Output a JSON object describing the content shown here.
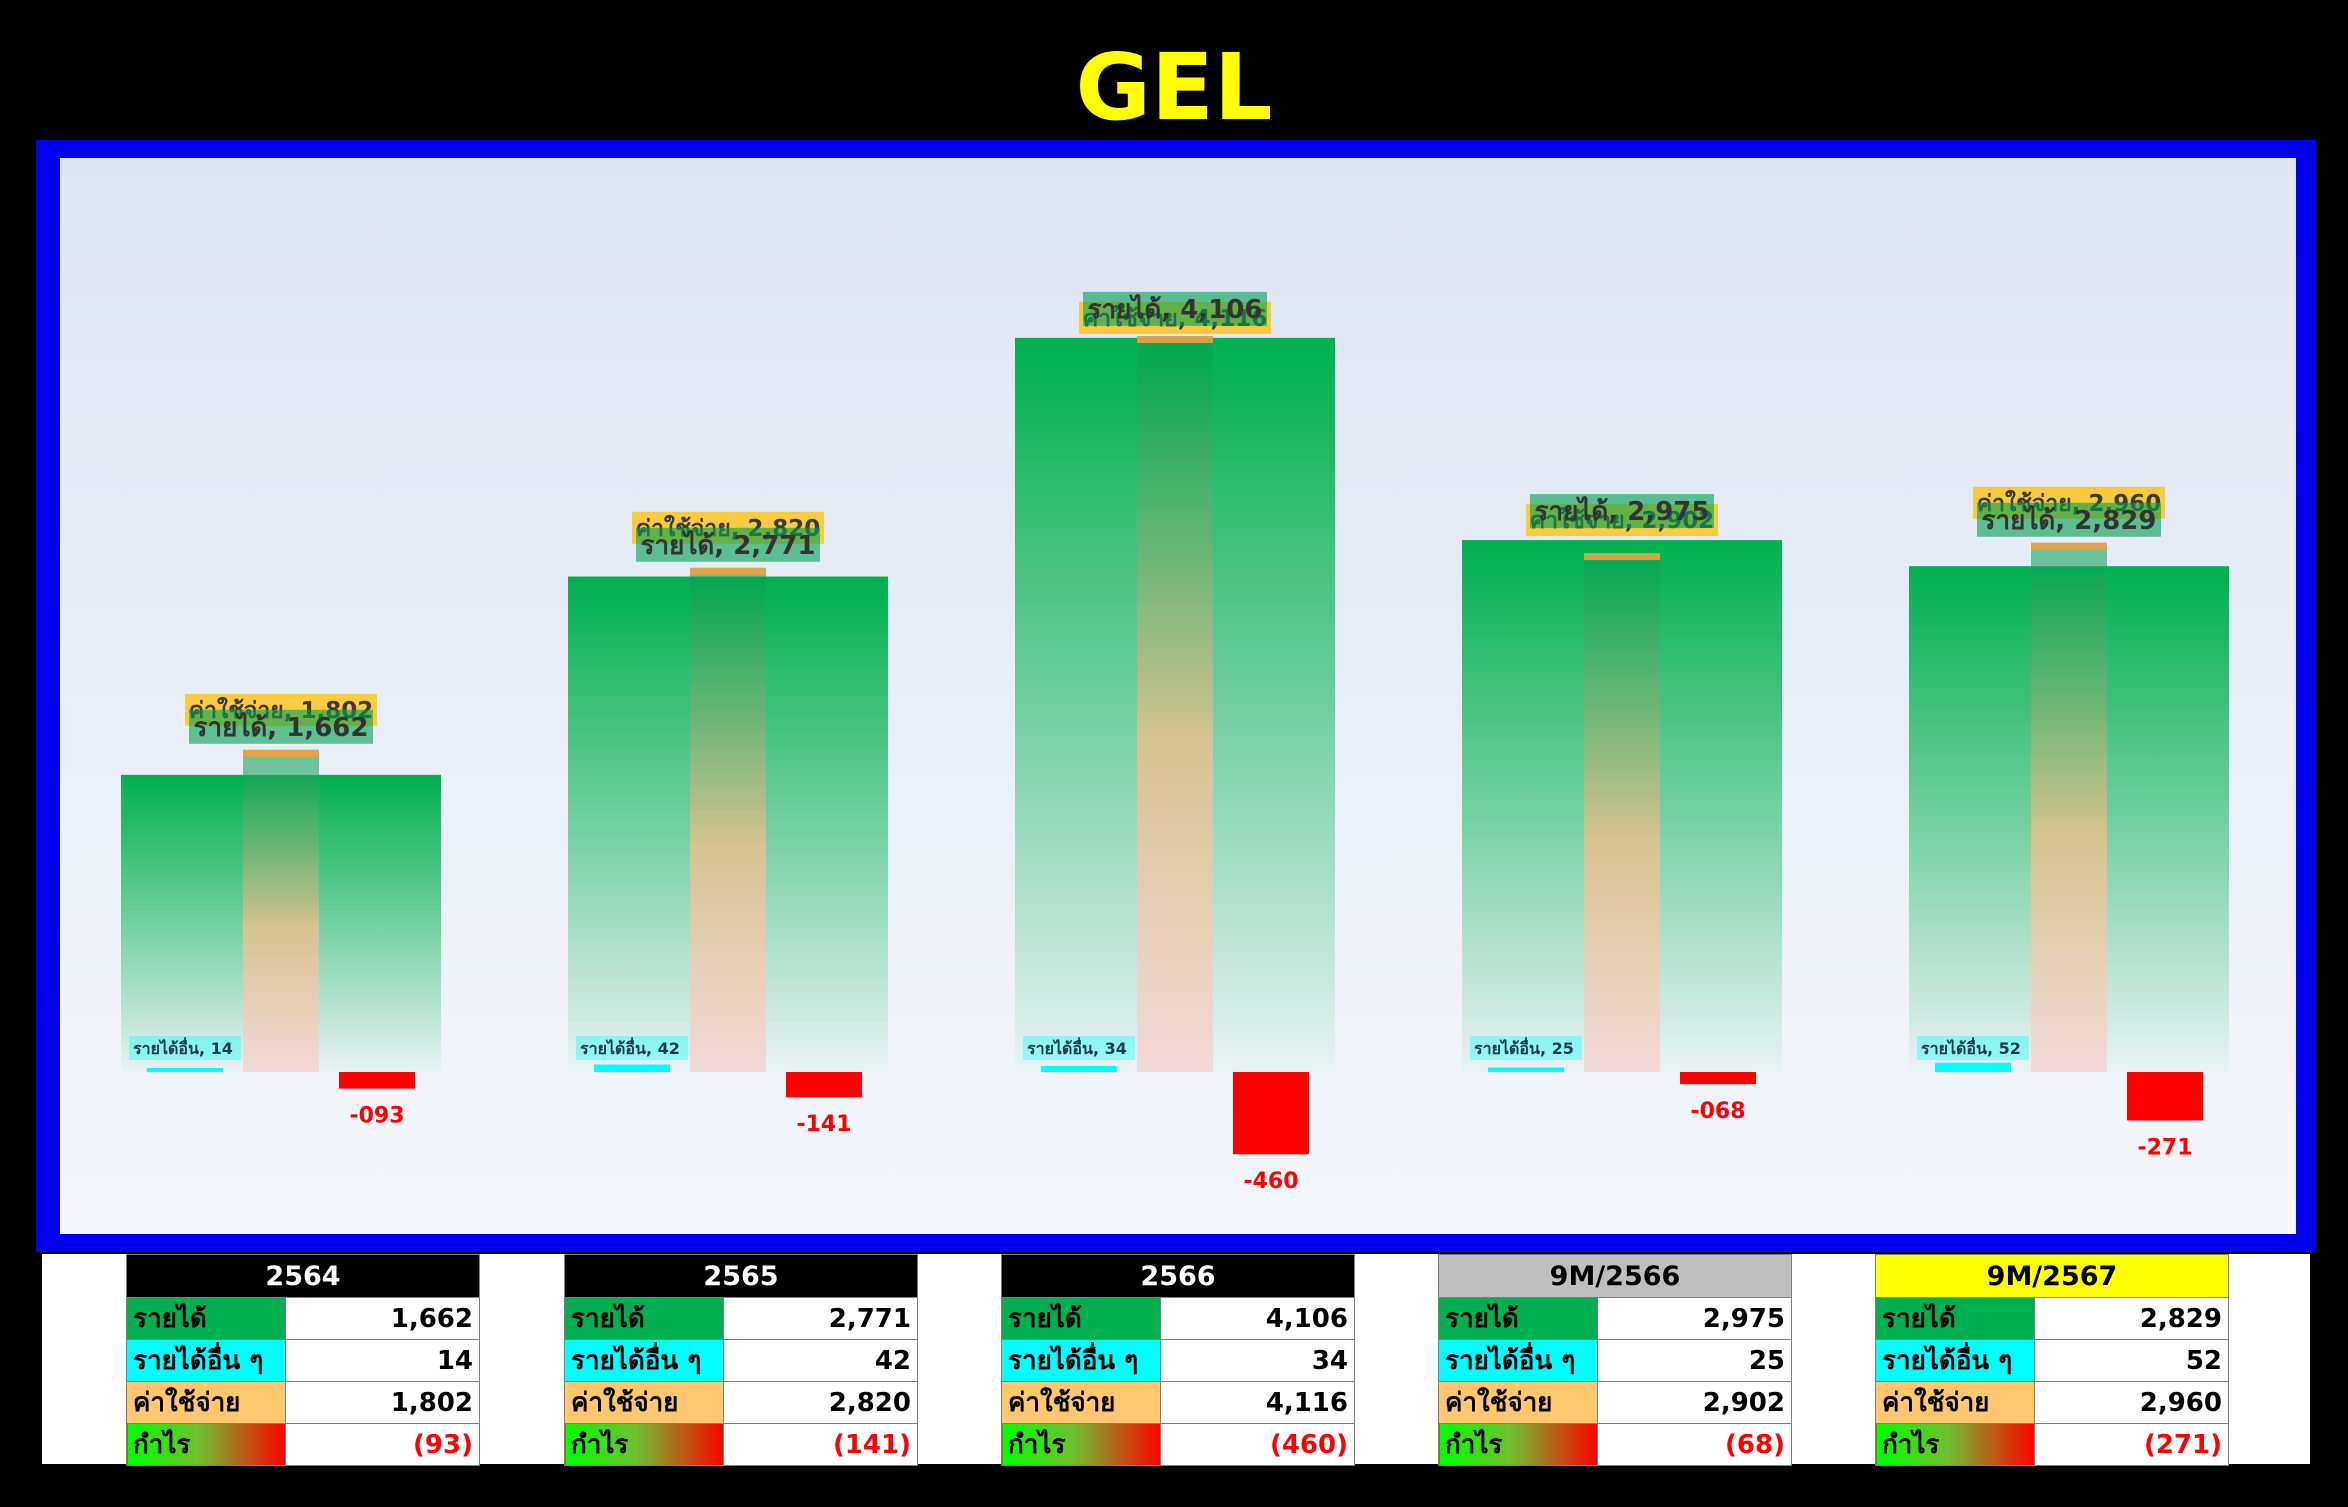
{
  "title": "GEL",
  "colors": {
    "revenue": "#00b050",
    "other_income": "#00ffff",
    "expense": "#ffc000",
    "loss": "#ff0000",
    "title": "#ffff00"
  },
  "chart_data": {
    "type": "bar",
    "categories": [
      "2564",
      "2565",
      "2566",
      "9M/2566",
      "9M/2567"
    ],
    "series": [
      {
        "name": "รายได้",
        "values": [
          1662,
          2771,
          4106,
          2975,
          2829
        ]
      },
      {
        "name": "รายได้อื่น",
        "values": [
          14,
          42,
          34,
          25,
          52
        ]
      },
      {
        "name": "ค่าใช้จ่าย",
        "values": [
          1802,
          2820,
          4116,
          2902,
          2960
        ]
      },
      {
        "name": "กำไร",
        "values": [
          -93,
          -141,
          -460,
          -68,
          -271
        ]
      }
    ],
    "bar_labels": {
      "revenue": [
        "รายได้, 1,662",
        "รายได้, 2,771",
        "รายได้, 4,106",
        "รายได้, 2,975",
        "รายได้, 2,829"
      ],
      "expense": [
        "ค่าใช้จ่าย, 1,802",
        "ค่าใช้จ่าย, 2,820",
        "ค่าใช้จ่าย, 4,116",
        "ค่าใช้จ่าย, 2,902",
        "ค่าใช้จ่าย, 2,960"
      ],
      "other_income": [
        "รายได้อื่น, 14",
        "รายได้อื่น, 42",
        "รายได้อื่น, 34",
        "รายได้อื่น, 25",
        "รายได้อื่น, 52"
      ],
      "profit": [
        "-093",
        "-141",
        "-460",
        "-068",
        "-271"
      ]
    },
    "ylim": [
      -500,
      4500
    ],
    "grid": false,
    "legend": "none"
  },
  "tables": [
    {
      "header": "2564",
      "header_bg": "#000000",
      "header_fg": "#ffffff",
      "rows": [
        {
          "label": "รายได้",
          "value": "1,662"
        },
        {
          "label": "รายได้อื่น ๆ",
          "value": "14"
        },
        {
          "label": "ค่าใช้จ่าย",
          "value": "1,802"
        },
        {
          "label": "กำไร",
          "value": "(93)"
        }
      ]
    },
    {
      "header": "2565",
      "header_bg": "#000000",
      "header_fg": "#ffffff",
      "rows": [
        {
          "label": "รายได้",
          "value": "2,771"
        },
        {
          "label": "รายได้อื่น ๆ",
          "value": "42"
        },
        {
          "label": "ค่าใช้จ่าย",
          "value": "2,820"
        },
        {
          "label": "กำไร",
          "value": "(141)"
        }
      ]
    },
    {
      "header": "2566",
      "header_bg": "#000000",
      "header_fg": "#ffffff",
      "rows": [
        {
          "label": "รายได้",
          "value": "4,106"
        },
        {
          "label": "รายได้อื่น ๆ",
          "value": "34"
        },
        {
          "label": "ค่าใช้จ่าย",
          "value": "4,116"
        },
        {
          "label": "กำไร",
          "value": "(460)"
        }
      ]
    },
    {
      "header": "9M/2566",
      "header_bg": "#bfbfbf",
      "header_fg": "#000000",
      "rows": [
        {
          "label": "รายได้",
          "value": "2,975"
        },
        {
          "label": "รายได้อื่น ๆ",
          "value": "25"
        },
        {
          "label": "ค่าใช้จ่าย",
          "value": "2,902"
        },
        {
          "label": "กำไร",
          "value": "(68)"
        }
      ]
    },
    {
      "header": "9M/2567",
      "header_bg": "#ffff00",
      "header_fg": "#000000",
      "rows": [
        {
          "label": "รายได้",
          "value": "2,829"
        },
        {
          "label": "รายได้อื่น ๆ",
          "value": "52"
        },
        {
          "label": "ค่าใช้จ่าย",
          "value": "2,960"
        },
        {
          "label": "กำไร",
          "value": "(271)"
        }
      ]
    }
  ]
}
